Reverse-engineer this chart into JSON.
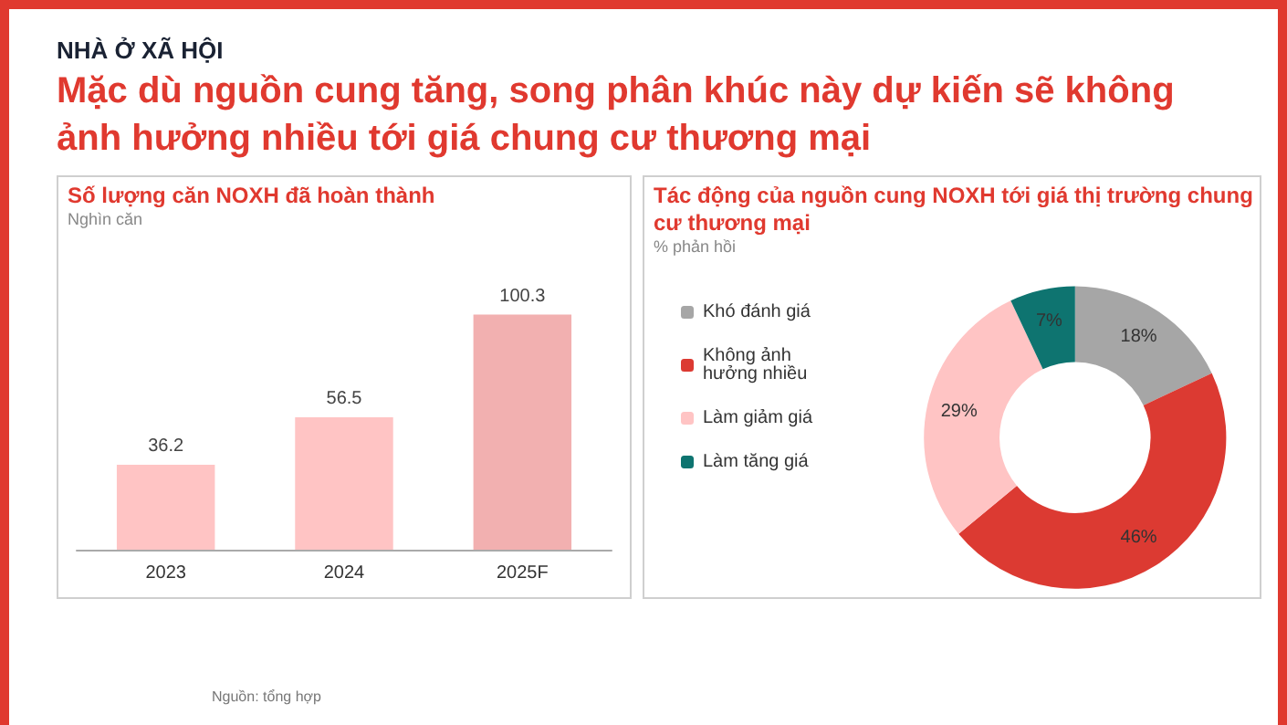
{
  "chart_data": [
    {
      "type": "bar",
      "title": "Số lượng căn NOXH đã hoàn thành",
      "subtitle": "Nghìn căn",
      "annotations": [
        "NHÀ Ở XÃ HỘI",
        "Mặc dù nguồn cung tăng, song phân khúc này dự kiến sẽ không ảnh hưởng nhiều tới giá chung cư thương mại",
        "Nguồn: tổng hợp"
      ],
      "categories": [
        "2023",
        "2024",
        "2025F"
      ],
      "values": [
        36.2,
        56.5,
        100.3
      ],
      "colors": [
        "#ffc4c4",
        "#ffc4c4",
        "#f2b0b0"
      ],
      "data_labels": true,
      "legend": false
    },
    {
      "type": "donut",
      "title": "Tác động của nguồn cung NOXH tới giá thị trường chung cư thương mại",
      "subtitle": "% phản hồi",
      "categories": [
        "Khó đánh giá",
        "Không ảnh hưởng nhiều",
        "Làm giảm giá",
        "Làm tăng giá"
      ],
      "values": [
        18,
        46,
        29,
        7
      ],
      "colors": [
        "#a6a6a6",
        "#dc3a32",
        "#ffc4c4",
        "#0e7470"
      ],
      "value_labels": [
        "18%",
        "46%",
        "29%",
        "7%"
      ],
      "legend": "left"
    }
  ]
}
